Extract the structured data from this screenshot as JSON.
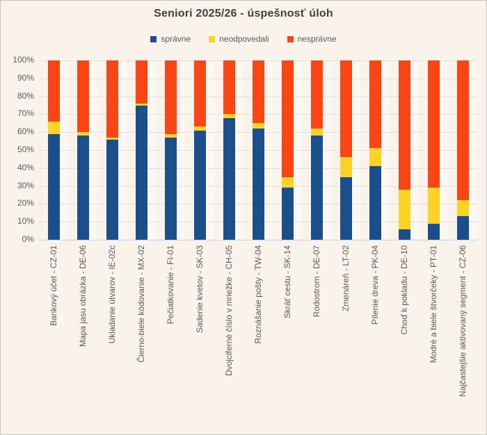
{
  "chart_data": {
    "type": "bar",
    "stacked": true,
    "title": "Seniori 2025/26 - úspešnosť úloh",
    "categories": [
      "Bankový účet - CZ-01",
      "Mapa jasu obrázka - DE-06",
      "Ukladanie útvarov - IE-02c",
      "Čierno-biele kódovanie - MX-02",
      "Pečiatkovanie - FI-01",
      "Sadenie kvetov - SK-03",
      "Dvojciferné číslo v mriežke - CH-05",
      "Roznášanie pošty - TW-04",
      "Skráť cestu - SK-14",
      "Rodostrom - DE-07",
      "Zmenáreň - LT-02",
      "Pílenie dreva - PK-04",
      "Choď k pokladu - DE-10",
      "Modré a biele štvorčeky - PT-01",
      "Najčastejšie aktivovaný segment - CZ-06"
    ],
    "series": [
      {
        "name": "správne",
        "color": "#1B4F8B",
        "values": [
          59,
          58,
          56,
          75,
          57,
          61,
          68,
          62,
          29,
          58,
          35,
          41,
          6,
          9,
          13
        ]
      },
      {
        "name": "neodpovedali",
        "color": "#FFD325",
        "values": [
          7,
          2,
          1,
          1,
          2,
          2,
          2,
          3,
          6,
          4,
          11,
          10,
          22,
          20,
          9
        ]
      },
      {
        "name": "nesprávne",
        "color": "#FB4515",
        "values": [
          34,
          40,
          43,
          24,
          41,
          37,
          30,
          35,
          65,
          38,
          54,
          49,
          72,
          71,
          78
        ]
      }
    ],
    "xlabel": "",
    "ylabel": "",
    "ylim": [
      0,
      100
    ],
    "ytick_step": 10,
    "yticklabels": [
      "0%",
      "10%",
      "20%",
      "30%",
      "40%",
      "50%",
      "60%",
      "70%",
      "80%",
      "90%",
      "100%"
    ],
    "x_tick_rotation": 90,
    "grid": true,
    "legend_position": "top",
    "background": "#F9F3EB",
    "bar_width_ratio": 0.4
  }
}
